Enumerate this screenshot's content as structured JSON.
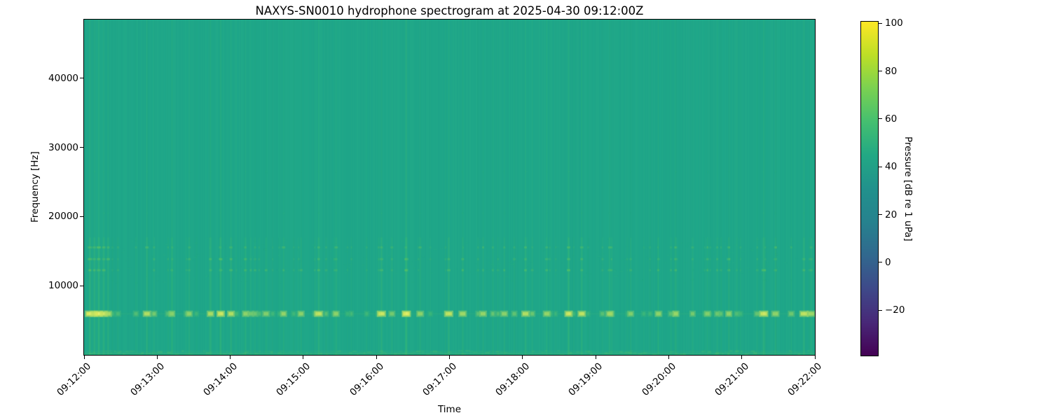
{
  "chart_data": {
    "type": "heatmap",
    "subtype": "spectrogram",
    "title": "NAXYS-SN0010 hydrophone spectrogram at 2025-04-30 09:12:00Z",
    "xlabel": "Time",
    "ylabel": "Frequency [Hz]",
    "x_tick_labels": [
      "09:12:00",
      "09:13:00",
      "09:14:00",
      "09:15:00",
      "09:16:00",
      "09:17:00",
      "09:18:00",
      "09:19:00",
      "09:20:00",
      "09:21:00",
      "09:22:00"
    ],
    "x_range": [
      "09:12:00",
      "09:22:00"
    ],
    "y_tick_values": [
      10000,
      20000,
      30000,
      40000
    ],
    "y_tick_labels": [
      "10000",
      "20000",
      "30000",
      "40000"
    ],
    "y_range_hz": [
      0,
      48500
    ],
    "grid": false,
    "legend": "none",
    "colorbar": {
      "label": "Pressure [dB re 1 uPa]",
      "tick_values": [
        100,
        80,
        60,
        40,
        20,
        0,
        -20
      ],
      "tick_labels": [
        "100",
        "80",
        "60",
        "40",
        "20",
        "0",
        "−20"
      ],
      "vmin": -39.3,
      "vmax": 101,
      "colormap": "viridis",
      "gradient_stops": [
        "#440154",
        "#482878",
        "#3e4989",
        "#31688e",
        "#26828e",
        "#21918c",
        "#22a884",
        "#44bf70",
        "#7ad151",
        "#bddf26",
        "#fde725"
      ]
    },
    "content": {
      "description": "Near-uniform ambient background around 50 dB with repeated broadband transient clicks appearing as faint vertical striations; strongest narrowband click energy forms a dashed bright band near 6 kHz; secondary striation bands at 12-16 kHz; faint low-frequency noise texture along the very bottom of the plot.",
      "background_level_db": 50,
      "peak_level_db": 85,
      "click_band_hz": 6000,
      "harmonic_bands_hz": [
        12300,
        13900,
        15600
      ],
      "upper_speckle_bands_hz": [
        20500,
        26500
      ],
      "strong_clicks": [
        [
          0.008,
          1.0
        ],
        [
          0.014,
          0.85
        ],
        [
          0.02,
          1.0
        ],
        [
          0.027,
          0.9
        ],
        [
          0.033,
          0.75
        ],
        [
          0.086,
          0.8
        ],
        [
          0.12,
          0.55
        ],
        [
          0.144,
          0.6
        ],
        [
          0.173,
          0.75
        ],
        [
          0.187,
          0.9
        ],
        [
          0.201,
          0.8
        ],
        [
          0.221,
          0.6
        ],
        [
          0.249,
          0.55
        ],
        [
          0.273,
          0.65
        ],
        [
          0.297,
          0.6
        ],
        [
          0.321,
          0.85
        ],
        [
          0.345,
          0.6
        ],
        [
          0.407,
          0.9
        ],
        [
          0.441,
          1.0
        ],
        [
          0.46,
          0.6
        ],
        [
          0.499,
          0.85
        ],
        [
          0.518,
          0.7
        ],
        [
          0.546,
          0.65
        ],
        [
          0.575,
          0.6
        ],
        [
          0.604,
          0.8
        ],
        [
          0.633,
          0.65
        ],
        [
          0.663,
          0.9
        ],
        [
          0.681,
          0.85
        ],
        [
          0.719,
          0.7
        ],
        [
          0.748,
          0.55
        ],
        [
          0.786,
          0.6
        ],
        [
          0.81,
          0.65
        ],
        [
          0.853,
          0.55
        ],
        [
          0.882,
          0.6
        ],
        [
          0.93,
          0.9
        ],
        [
          0.946,
          0.6
        ],
        [
          0.985,
          0.85
        ],
        [
          0.995,
          0.7
        ]
      ],
      "render": {
        "seed": 90120430,
        "base_color": "#1fa78a",
        "col_light": "#3fbf72",
        "col_dark": "#0f8871",
        "dash_low": "#35b779",
        "dash_mid": "#7ad151",
        "dash_bright": "#d7e95c",
        "dash_core": "#e8f07a",
        "bottom_color": "#63c95f",
        "weak_click_spacing_px": [
          5,
          26
        ]
      }
    }
  }
}
